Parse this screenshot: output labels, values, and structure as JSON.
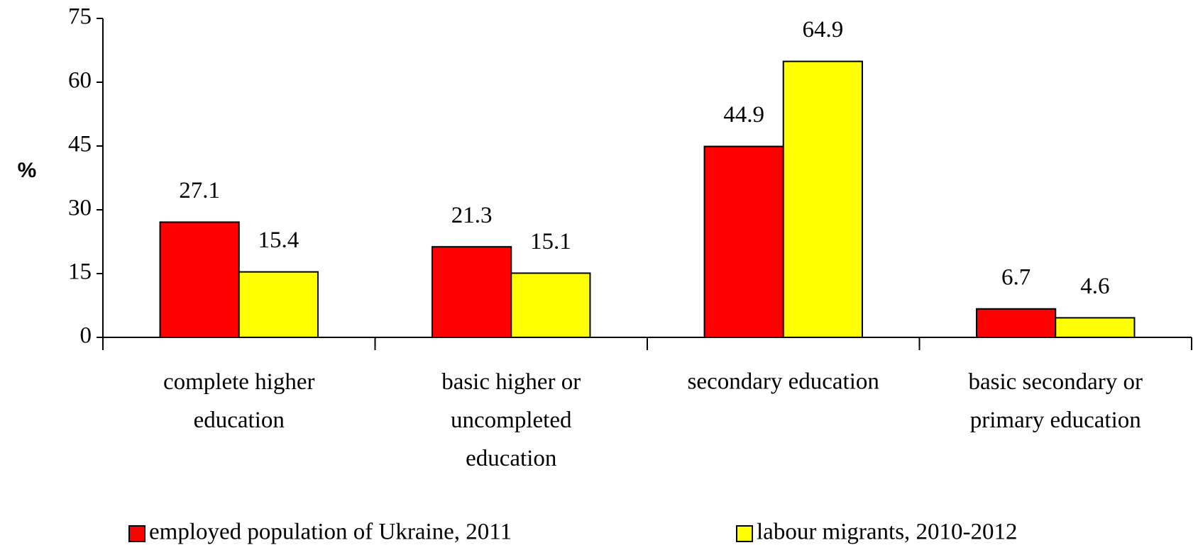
{
  "chart_data": {
    "type": "bar",
    "y_label": "%",
    "categories": [
      "complete higher\neducation",
      "basic higher or\nuncompleted\neducation",
      "secondary education",
      "basic secondary or\nprimary education"
    ],
    "series": [
      {
        "name": "employed population of Ukraine, 2011",
        "color": "#ff0000",
        "values": [
          27.1,
          21.3,
          44.9,
          6.7
        ]
      },
      {
        "name": "labour migrants, 2010-2012",
        "color": "#ffff00",
        "values": [
          15.4,
          15.1,
          64.9,
          4.6
        ]
      }
    ],
    "ylim": [
      0,
      75
    ],
    "yticks": [
      0,
      15,
      30,
      45,
      60,
      75
    ],
    "grid": false,
    "legend": "bottom"
  }
}
